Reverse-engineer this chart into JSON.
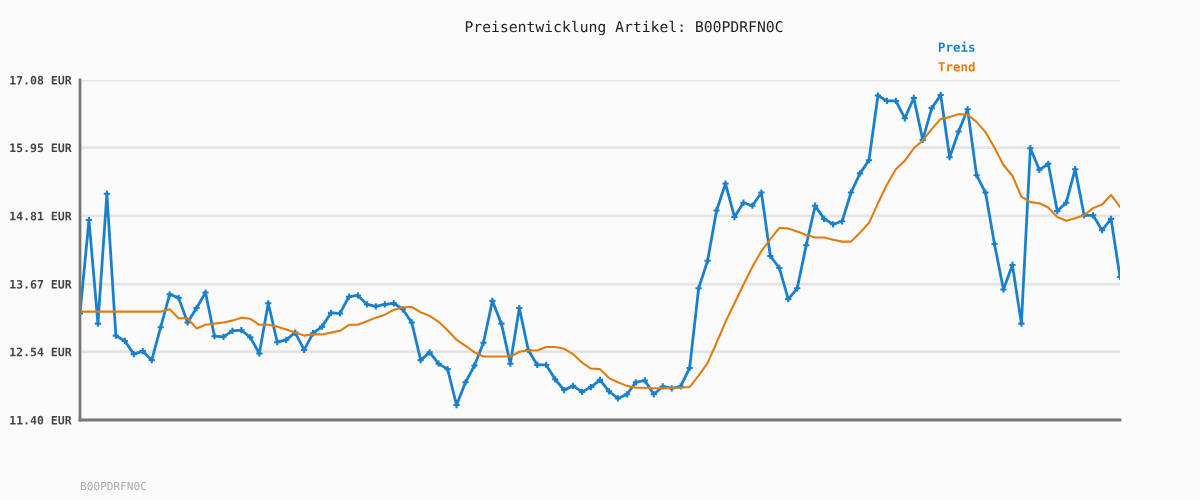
{
  "chart_data": {
    "type": "line",
    "title": "Preisentwicklung Artikel: B00PDRFN0C",
    "categories": [
      null,
      null,
      null,
      null,
      null,
      null,
      null,
      null,
      null,
      null,
      null,
      null,
      null,
      null,
      null,
      null,
      null,
      null,
      null,
      null,
      null,
      null,
      null,
      null,
      null,
      null,
      null,
      null,
      null,
      null,
      null,
      null,
      null,
      null,
      null,
      null,
      null,
      null,
      null,
      null,
      null,
      null,
      null,
      null,
      null,
      null,
      null,
      null,
      null,
      null,
      null,
      null,
      null,
      null,
      null,
      null,
      null,
      null,
      null,
      null,
      null,
      null,
      null,
      null,
      null,
      null,
      null,
      null,
      null,
      null,
      null,
      null,
      null,
      null,
      null,
      null,
      null,
      null,
      null,
      null,
      null,
      null,
      null,
      null,
      null,
      null,
      null,
      null,
      null,
      null,
      null,
      null,
      null,
      null,
      null,
      null,
      null,
      null,
      null,
      null,
      null,
      null,
      null,
      null,
      null,
      null,
      null,
      null,
      null,
      null,
      null,
      null,
      null,
      null,
      null,
      null,
      null
    ],
    "series": [
      {
        "name": "Preis",
        "color": "#1a80cc",
        "marker": "cross",
        "values": [
          13.18,
          14.74,
          13.01,
          15.18,
          12.81,
          12.72,
          12.5,
          12.55,
          12.4,
          12.95,
          13.5,
          13.44,
          13.03,
          13.27,
          13.53,
          12.8,
          12.79,
          12.89,
          12.9,
          12.78,
          12.51,
          13.35,
          12.7,
          12.74,
          12.86,
          12.57,
          12.85,
          12.96,
          13.19,
          13.18,
          13.46,
          13.48,
          13.33,
          13.3,
          13.33,
          13.35,
          13.25,
          13.03,
          12.4,
          12.53,
          12.34,
          12.25,
          11.65,
          12.03,
          12.31,
          12.69,
          13.39,
          13.01,
          12.34,
          13.27,
          12.57,
          12.32,
          12.32,
          12.08,
          11.9,
          11.97,
          11.87,
          11.95,
          12.07,
          11.88,
          11.76,
          11.83,
          12.03,
          12.06,
          11.83,
          11.96,
          11.93,
          11.96,
          12.27,
          13.6,
          14.06,
          14.9,
          15.35,
          14.79,
          15.03,
          14.98,
          15.2,
          14.14,
          13.94,
          13.42,
          13.6,
          14.32,
          14.98,
          14.76,
          14.67,
          14.72,
          15.2,
          15.52,
          15.74,
          16.82,
          16.73,
          16.73,
          16.44,
          16.78,
          16.08,
          16.61,
          16.83,
          15.79,
          16.22,
          16.59,
          15.49,
          15.2,
          14.34,
          13.58,
          13.99,
          13.01,
          15.94,
          15.58,
          15.68,
          14.89,
          15.03,
          15.59,
          14.82,
          14.82,
          14.57,
          14.76,
          13.79
        ]
      },
      {
        "name": "Trend",
        "color": "#e07d10",
        "marker": "none",
        "values": [
          13.21,
          13.21,
          13.21,
          13.21,
          13.21,
          13.21,
          13.21,
          13.21,
          13.21,
          13.21,
          13.25,
          13.1,
          13.1,
          12.93,
          12.99,
          13.01,
          13.03,
          13.06,
          13.11,
          13.09,
          12.99,
          12.99,
          12.96,
          12.91,
          12.86,
          12.81,
          12.83,
          12.83,
          12.86,
          12.89,
          12.99,
          12.99,
          13.05,
          13.11,
          13.16,
          13.24,
          13.28,
          13.29,
          13.2,
          13.14,
          13.04,
          12.9,
          12.74,
          12.64,
          12.53,
          12.46,
          12.46,
          12.46,
          12.46,
          12.54,
          12.56,
          12.56,
          12.62,
          12.62,
          12.59,
          12.5,
          12.36,
          12.26,
          12.25,
          12.1,
          12.03,
          11.97,
          11.94,
          11.94,
          11.93,
          11.93,
          11.94,
          11.94,
          11.95,
          12.14,
          12.35,
          12.69,
          13.04,
          13.35,
          13.66,
          13.96,
          14.22,
          14.42,
          14.61,
          14.6,
          14.55,
          14.49,
          14.45,
          14.45,
          14.41,
          14.38,
          14.38,
          14.53,
          14.69,
          15.02,
          15.33,
          15.59,
          15.73,
          15.94,
          16.07,
          16.26,
          16.43,
          16.46,
          16.51,
          16.5,
          16.38,
          16.21,
          15.95,
          15.66,
          15.48,
          15.13,
          15.04,
          15.02,
          14.95,
          14.79,
          14.73,
          14.77,
          14.82,
          14.94,
          15.0,
          15.16,
          14.96
        ]
      }
    ],
    "ylim": [
      11.4,
      17.08
    ],
    "yticks": [
      {
        "value": 11.4,
        "label": "11.40 EUR"
      },
      {
        "value": 12.54,
        "label": "12.54 EUR"
      },
      {
        "value": 13.67,
        "label": "13.67 EUR"
      },
      {
        "value": 14.81,
        "label": "14.81 EUR"
      },
      {
        "value": 15.95,
        "label": "15.95 EUR"
      },
      {
        "value": 17.08,
        "label": "17.08 EUR"
      }
    ],
    "grid": "y",
    "legend": "top right",
    "tick_labels": "y",
    "annotations": [
      "B00PDRFN0C"
    ]
  }
}
